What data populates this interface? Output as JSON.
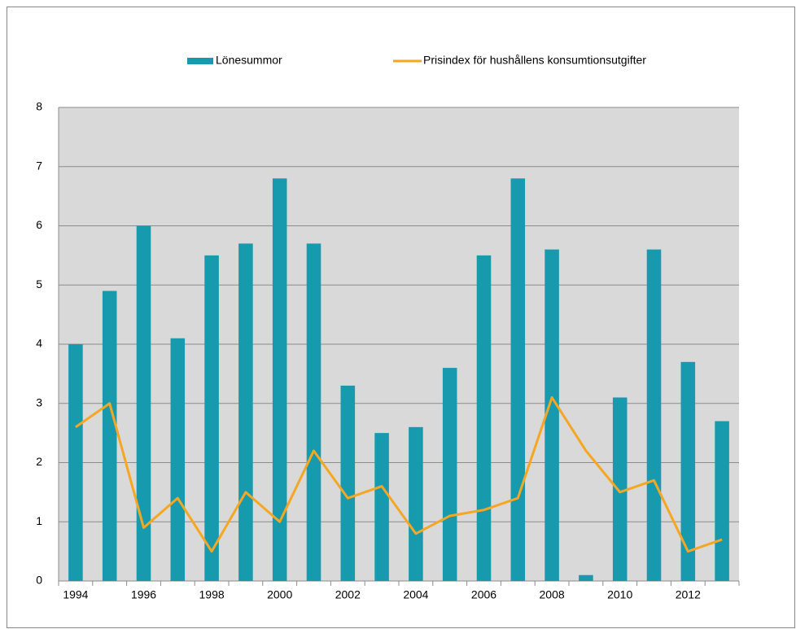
{
  "chart_data": {
    "type": "bar-line",
    "categories": [
      "1994",
      null,
      "1996",
      null,
      "1998",
      null,
      "2000",
      null,
      "2002",
      null,
      "2004",
      null,
      "2006",
      null,
      "2008",
      null,
      "2010",
      null,
      "2012",
      null
    ],
    "series": [
      {
        "name": "Lönesummor",
        "type": "bar",
        "color": "#179aae",
        "values": [
          4,
          4.9,
          6,
          4.1,
          5.5,
          5.7,
          6.8,
          5.7,
          3.3,
          2.5,
          2.6,
          3.6,
          5.5,
          6.8,
          5.6,
          0.1,
          3.1,
          5.6,
          3.7,
          2.7
        ]
      },
      {
        "name": "Prisindex för hushållens konsumtionsutgifter",
        "type": "line",
        "color": "#f5a623",
        "values": [
          2.6,
          3.0,
          0.9,
          1.4,
          0.5,
          1.5,
          1.0,
          2.2,
          1.4,
          1.6,
          0.8,
          1.1,
          1.2,
          1.4,
          3.1,
          2.2,
          1.5,
          1.7,
          0.5,
          0.7
        ]
      }
    ],
    "ylim": [
      0,
      8
    ],
    "yticks": [
      0,
      1,
      2,
      3,
      4,
      5,
      6,
      7,
      8
    ],
    "grid": true,
    "legend": "top"
  }
}
